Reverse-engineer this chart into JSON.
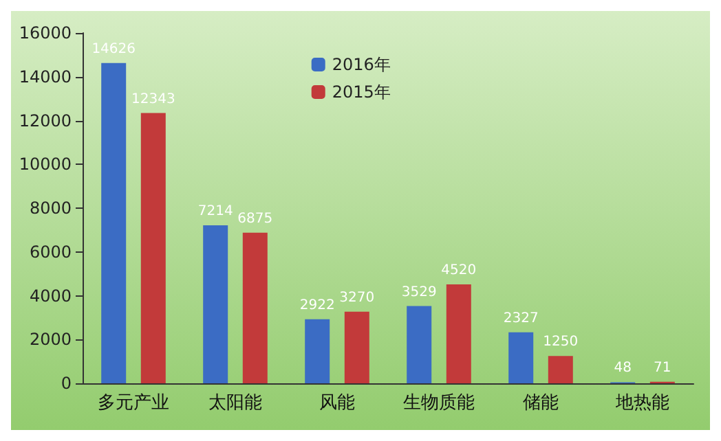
{
  "chart_data": {
    "type": "bar",
    "categories": [
      "多元产业",
      "太阳能",
      "风能",
      "生物质能",
      "储能",
      "地热能"
    ],
    "series": [
      {
        "name": "2016年",
        "color": "#3b6cc4",
        "values": [
          14626,
          7214,
          2922,
          3529,
          2327,
          48
        ]
      },
      {
        "name": "2015年",
        "color": "#c23a3a",
        "values": [
          12343,
          6875,
          3270,
          4520,
          1250,
          71
        ]
      }
    ],
    "ylim": [
      0,
      16000
    ],
    "yticks": [
      0,
      2000,
      4000,
      6000,
      8000,
      10000,
      12000,
      14000,
      16000
    ],
    "grid": false,
    "legend": "top",
    "data_labels": true
  }
}
